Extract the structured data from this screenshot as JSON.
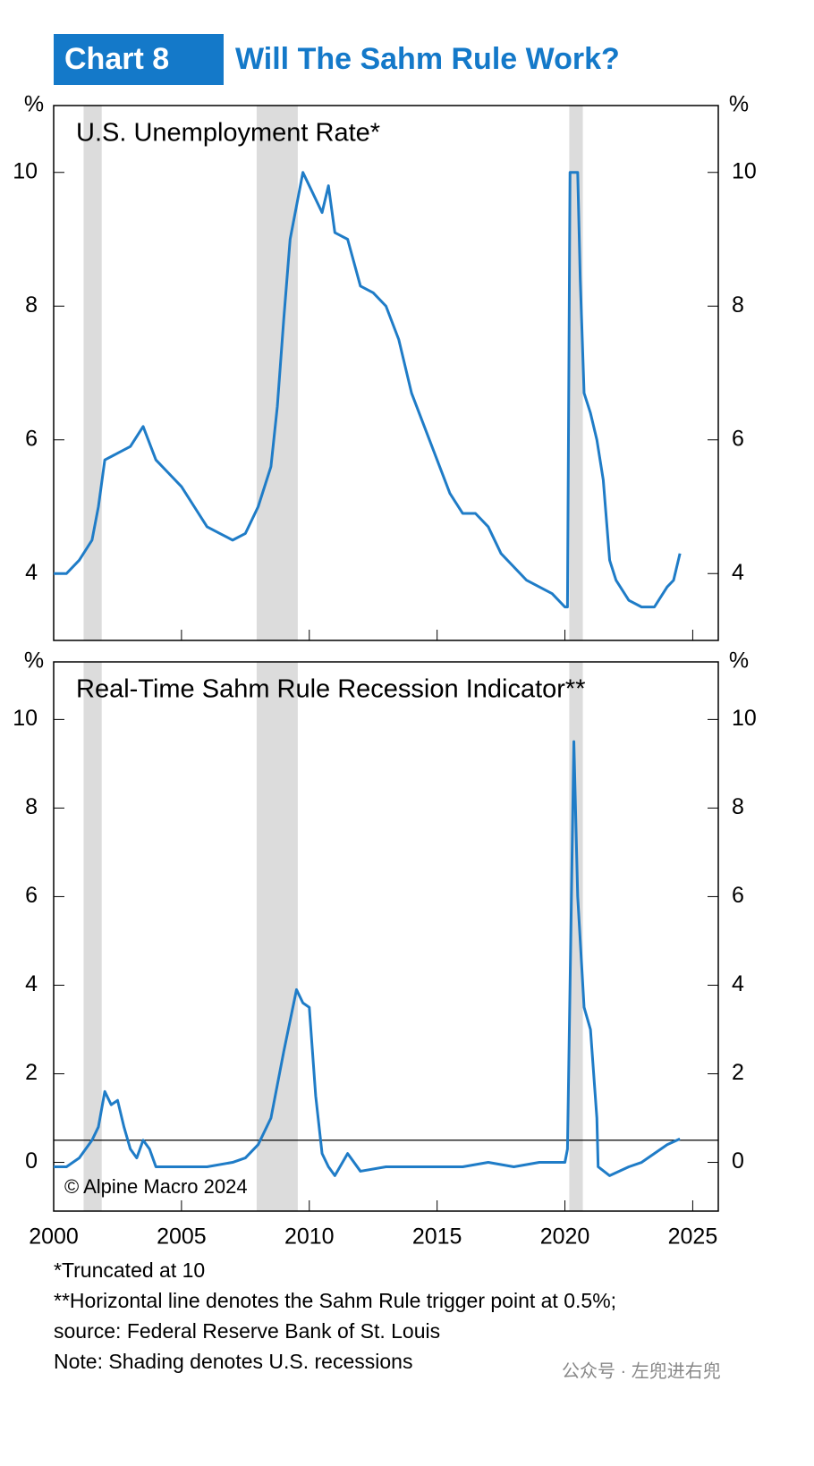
{
  "header": {
    "label": "Chart 8",
    "title": "Will The Sahm Rule Work?"
  },
  "chart_data": [
    {
      "type": "line",
      "title": "U.S. Unemployment Rate*",
      "y_label": "%",
      "color": "#1f7cc7",
      "x": [
        2000.0,
        2000.5,
        2001.0,
        2001.5,
        2001.75,
        2002.0,
        2002.5,
        2003.0,
        2003.5,
        2004.0,
        2004.5,
        2005.0,
        2005.5,
        2006.0,
        2006.5,
        2007.0,
        2007.5,
        2008.0,
        2008.5,
        2008.75,
        2009.0,
        2009.25,
        2009.5,
        2009.75,
        2010.0,
        2010.5,
        2010.75,
        2011.0,
        2011.5,
        2012.0,
        2012.5,
        2013.0,
        2013.5,
        2014.0,
        2014.5,
        2015.0,
        2015.5,
        2016.0,
        2016.5,
        2017.0,
        2017.5,
        2018.0,
        2018.5,
        2019.0,
        2019.5,
        2020.0,
        2020.1,
        2020.2,
        2020.5,
        2020.6,
        2020.75,
        2021.0,
        2021.25,
        2021.5,
        2021.75,
        2022.0,
        2022.5,
        2023.0,
        2023.5,
        2024.0,
        2024.25,
        2024.5
      ],
      "values": [
        4.0,
        4.0,
        4.2,
        4.5,
        5.0,
        5.7,
        5.8,
        5.9,
        6.2,
        5.7,
        5.5,
        5.3,
        5.0,
        4.7,
        4.6,
        4.5,
        4.6,
        5.0,
        5.6,
        6.5,
        7.8,
        9.0,
        9.5,
        10.0,
        9.8,
        9.4,
        9.8,
        9.1,
        9.0,
        8.3,
        8.2,
        8.0,
        7.5,
        6.7,
        6.2,
        5.7,
        5.2,
        4.9,
        4.9,
        4.7,
        4.3,
        4.1,
        3.9,
        3.8,
        3.7,
        3.5,
        3.5,
        10,
        10,
        8.4,
        6.7,
        6.4,
        6.0,
        5.4,
        4.2,
        3.9,
        3.6,
        3.5,
        3.5,
        3.8,
        3.9,
        4.3
      ],
      "xlim": [
        2000,
        2026
      ],
      "xticks": [
        2000,
        2005,
        2010,
        2015,
        2020,
        2025
      ],
      "ylim": [
        3,
        11
      ],
      "yticks": [
        4,
        6,
        8,
        10
      ],
      "recessions": [
        [
          2001.17,
          2001.88
        ],
        [
          2007.94,
          2009.55
        ],
        [
          2020.17,
          2020.7
        ]
      ],
      "shading_color": "#dcdcdc"
    },
    {
      "type": "line",
      "title": "Real-Time Sahm Rule Recession Indicator**",
      "y_label": "%",
      "color": "#1f7cc7",
      "x": [
        2000.0,
        2000.5,
        2001.0,
        2001.5,
        2001.75,
        2002.0,
        2002.25,
        2002.5,
        2002.75,
        2003.0,
        2003.25,
        2003.5,
        2003.75,
        2004.0,
        2005.0,
        2006.0,
        2007.0,
        2007.5,
        2008.0,
        2008.5,
        2009.0,
        2009.5,
        2009.75,
        2010.0,
        2010.25,
        2010.5,
        2010.75,
        2011.0,
        2011.5,
        2012.0,
        2013.0,
        2014.0,
        2015.0,
        2016.0,
        2017.0,
        2018.0,
        2019.0,
        2020.0,
        2020.1,
        2020.35,
        2020.5,
        2020.75,
        2021.0,
        2021.25,
        2021.3,
        2021.75,
        2022.5,
        2023.0,
        2023.5,
        2024.0,
        2024.5
      ],
      "values": [
        -0.1,
        -0.1,
        0.1,
        0.5,
        0.8,
        1.6,
        1.3,
        1.4,
        0.8,
        0.3,
        0.1,
        0.5,
        0.3,
        -0.1,
        -0.1,
        -0.1,
        0.0,
        0.1,
        0.4,
        1.0,
        2.5,
        3.9,
        3.6,
        3.5,
        1.5,
        0.2,
        -0.1,
        -0.3,
        0.2,
        -0.2,
        -0.1,
        -0.1,
        -0.1,
        -0.1,
        0.0,
        -0.1,
        0.0,
        0.0,
        0.3,
        9.5,
        6.0,
        3.5,
        3.0,
        1.0,
        -0.1,
        -0.3,
        -0.1,
        0.0,
        0.2,
        0.4,
        0.53
      ],
      "xlim": [
        2000,
        2026
      ],
      "xticks": [
        2000,
        2005,
        2010,
        2015,
        2020,
        2025
      ],
      "ylim": [
        -1.1,
        11.3
      ],
      "yticks": [
        0,
        2,
        4,
        6,
        8,
        10
      ],
      "reference_line": 0.5,
      "recessions": [
        [
          2001.17,
          2001.88
        ],
        [
          2007.94,
          2009.55
        ],
        [
          2020.17,
          2020.7
        ]
      ],
      "shading_color": "#dcdcdc",
      "annotation": "© Alpine Macro 2024"
    }
  ],
  "footnotes": [
    "*Truncated at 10",
    "**Horizontal line denotes the Sahm Rule trigger point at 0.5%;",
    "source: Federal Reserve Bank of St. Louis",
    "Note: Shading denotes U.S. recessions"
  ],
  "watermark": "公众号 · 左兜进右兜"
}
